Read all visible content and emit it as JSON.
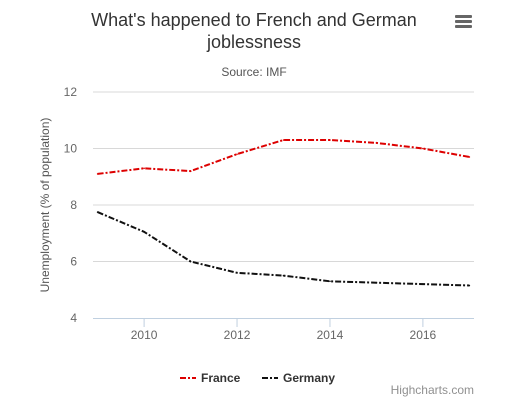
{
  "chart_data": {
    "type": "line",
    "title": "What's happened to French and German joblessness",
    "title_lines": [
      "What's happened to French and German",
      "joblessness"
    ],
    "subtitle": "Source: IMF",
    "ylabel": "Unemployment (% of population)",
    "xlabel": "",
    "xlim": [
      2008.9,
      2017.1
    ],
    "ylim": [
      4,
      12
    ],
    "x_ticks": [
      2010,
      2012,
      2014,
      2016
    ],
    "y_ticks": [
      4,
      6,
      8,
      10,
      12
    ],
    "grid": true,
    "legend_position": "bottom-center",
    "x": [
      2009,
      2010,
      2011,
      2012,
      2013,
      2014,
      2015,
      2016,
      2017
    ],
    "series": [
      {
        "name": "France",
        "color": "#dd0000",
        "values": [
          9.1,
          9.3,
          9.2,
          9.8,
          10.3,
          10.3,
          10.2,
          10.0,
          9.7
        ]
      },
      {
        "name": "Germany",
        "color": "#111111",
        "values": [
          7.75,
          7.05,
          6.0,
          5.6,
          5.5,
          5.3,
          5.25,
          5.2,
          5.15
        ]
      }
    ]
  },
  "menu_icon": "hamburger-menu-icon",
  "credits": "Highcharts.com"
}
